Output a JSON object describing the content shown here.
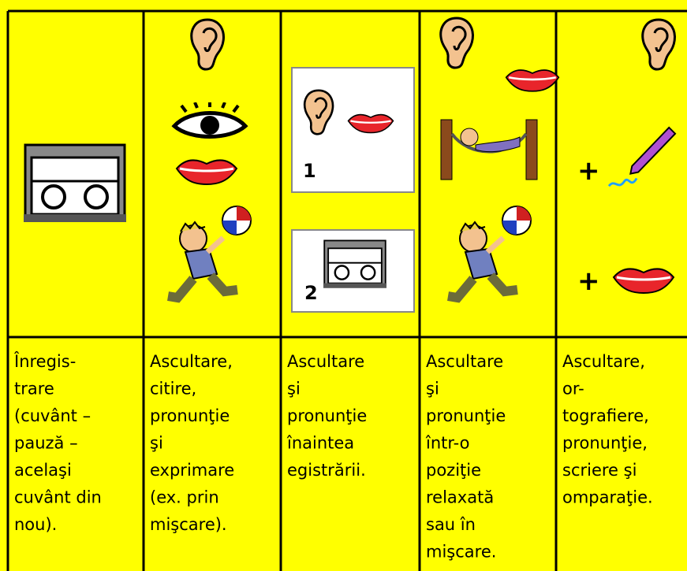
{
  "columns": [
    {
      "lines": [
        "Înregis-",
        "trare",
        "(cuvânt –",
        "pauză –",
        "acelaşi",
        "cuvânt din",
        "nou)."
      ]
    },
    {
      "lines": [
        "Ascultare,",
        "citire,",
        "pronunţie",
        "şi",
        "exprimare",
        "(ex. prin",
        "mişcare)."
      ]
    },
    {
      "icon_labels": [
        "1",
        "2"
      ],
      "lines": [
        "Ascultare",
        "şi",
        "pronunţie",
        "înaintea",
        "egistrării."
      ]
    },
    {
      "lines": [
        "Ascultare",
        "şi",
        "pronunţie",
        "într-o",
        "poziţie",
        "relaxată",
        "sau în",
        "mişcare."
      ]
    },
    {
      "icon_labels": [
        "+",
        "+"
      ],
      "lines": [
        "Ascultare,",
        "or-",
        "tografiere,",
        "pronunţie,",
        "scriere şi",
        "omparaţie."
      ]
    }
  ]
}
